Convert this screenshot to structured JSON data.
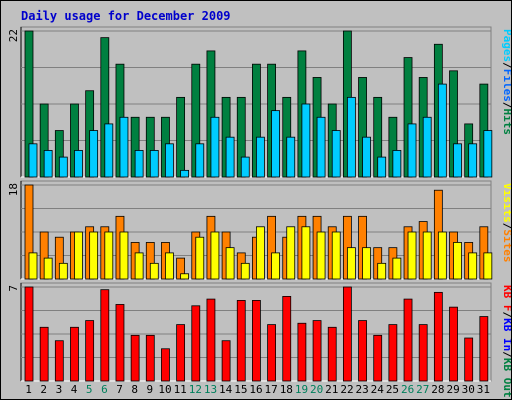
{
  "title": "Daily usage for December 2009",
  "colors": {
    "pages": "#00ccff",
    "files": "#0066ff",
    "hits": "#008040",
    "sites": "#ff8000",
    "visits": "#ffff00",
    "kb_in": "#0000ff",
    "kb_out": "#008040",
    "kb_f": "#ff0000",
    "weekend_day": "#00805c",
    "weekday": "#000000"
  },
  "chart_data": [
    {
      "type": "bar",
      "categories": [
        "1",
        "2",
        "3",
        "4",
        "5",
        "6",
        "7",
        "8",
        "9",
        "10",
        "11",
        "12",
        "13",
        "14",
        "15",
        "16",
        "17",
        "18",
        "19",
        "20",
        "21",
        "22",
        "23",
        "24",
        "25",
        "26",
        "27",
        "28",
        "29",
        "30",
        "31"
      ],
      "weekend_days": [
        "5",
        "6",
        "12",
        "13",
        "19",
        "20",
        "26",
        "27"
      ],
      "ymax_label": "22",
      "ylim": [
        0,
        22
      ],
      "grid": true,
      "legend": [
        "Pages",
        "/",
        "Files",
        "/",
        "Hits"
      ],
      "legend_colors": [
        "pages",
        "weekday",
        "files",
        "weekday",
        "hits"
      ],
      "series": [
        {
          "name": "Hits",
          "color_key": "hits",
          "values": [
            22,
            11,
            7,
            11,
            13,
            21,
            17,
            9,
            9,
            9,
            12,
            17,
            19,
            12,
            12,
            17,
            17,
            12,
            19,
            15,
            11,
            22,
            15,
            12,
            9,
            18,
            15,
            20,
            16,
            8,
            14
          ]
        },
        {
          "name": "Pages",
          "color_key": "pages",
          "values": [
            5,
            4,
            3,
            4,
            7,
            8,
            9,
            4,
            4,
            5,
            1,
            5,
            9,
            6,
            3,
            6,
            10,
            6,
            11,
            9,
            7,
            12,
            6,
            3,
            4,
            8,
            9,
            14,
            5,
            5,
            7
          ]
        }
      ]
    },
    {
      "type": "bar",
      "categories": [
        "1",
        "2",
        "3",
        "4",
        "5",
        "6",
        "7",
        "8",
        "9",
        "10",
        "11",
        "12",
        "13",
        "14",
        "15",
        "16",
        "17",
        "18",
        "19",
        "20",
        "21",
        "22",
        "23",
        "24",
        "25",
        "26",
        "27",
        "28",
        "29",
        "30",
        "31"
      ],
      "ymax_label": "18",
      "ylim": [
        0,
        18
      ],
      "grid": true,
      "legend": [
        "Visits",
        "/",
        "Sites"
      ],
      "legend_colors": [
        "visits",
        "weekday",
        "sites"
      ],
      "series": [
        {
          "name": "Sites",
          "color_key": "sites",
          "values": [
            18,
            9,
            8,
            9,
            10,
            10,
            12,
            7,
            7,
            7,
            4,
            9,
            12,
            9,
            5,
            8,
            12,
            8,
            12,
            12,
            10,
            12,
            12,
            6,
            6,
            10,
            11,
            17,
            9,
            7,
            10
          ]
        },
        {
          "name": "Visits",
          "color_key": "visits",
          "values": [
            5,
            4,
            3,
            9,
            9,
            9,
            9,
            5,
            3,
            5,
            1,
            8,
            9,
            6,
            3,
            10,
            5,
            10,
            10,
            9,
            9,
            6,
            6,
            3,
            4,
            9,
            9,
            9,
            7,
            5,
            5
          ]
        }
      ]
    },
    {
      "type": "bar",
      "categories": [
        "1",
        "2",
        "3",
        "4",
        "5",
        "6",
        "7",
        "8",
        "9",
        "10",
        "11",
        "12",
        "13",
        "14",
        "15",
        "16",
        "17",
        "18",
        "19",
        "20",
        "21",
        "22",
        "23",
        "24",
        "25",
        "26",
        "27",
        "28",
        "29",
        "30",
        "31"
      ],
      "ymax_label": "7",
      "ylim": [
        0,
        7
      ],
      "grid": true,
      "legend": [
        "KB F",
        "/",
        "KB In",
        "/",
        "KB Out"
      ],
      "legend_colors": [
        "kb_f",
        "weekday",
        "kb_in",
        "weekday",
        "kb_out"
      ],
      "series": [
        {
          "name": "KB F",
          "color_key": "kb_f",
          "values": [
            7,
            4,
            3,
            4,
            4.5,
            6.8,
            5.7,
            3.4,
            3.4,
            2.4,
            4.2,
            5.6,
            6.1,
            3,
            6,
            6,
            4.2,
            6.3,
            4.3,
            4.5,
            4,
            7,
            4.5,
            3.4,
            4.2,
            6.1,
            4.2,
            6.6,
            5.5,
            3.2,
            4.8
          ]
        }
      ]
    }
  ]
}
